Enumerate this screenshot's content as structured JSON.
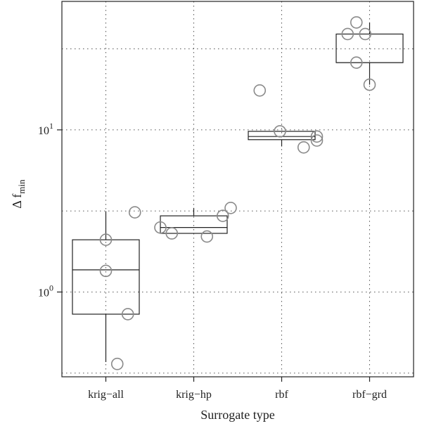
{
  "chart_data": {
    "type": "box",
    "xlabel": "Surrogate type",
    "ylabel_main": "Δ f",
    "ylabel_sub": "min",
    "yscale": "log",
    "ylim": [
      0.3,
      62
    ],
    "yticks": [
      {
        "value": 1,
        "base": "10",
        "exp": "0"
      },
      {
        "value": 10,
        "base": "10",
        "exp": "1"
      }
    ],
    "grid": true,
    "categories": [
      "krig−all",
      "krig−hp",
      "rbf",
      "rbf−grd"
    ],
    "boxes": [
      {
        "whisker_low": 0.37,
        "q1": 0.73,
        "median": 1.37,
        "q3": 2.1,
        "whisker_high": 3.15
      },
      {
        "whisker_low": 2.3,
        "q1": 2.3,
        "median": 2.5,
        "q3": 2.95,
        "whisker_high": 3.3
      },
      {
        "whisker_low": 7.9,
        "q1": 8.7,
        "median": 9.1,
        "q3": 9.8,
        "whisker_high": 9.8
      },
      {
        "whisker_low": 19,
        "q1": 26,
        "median": 26,
        "q3": 39,
        "whisker_high": 46
      }
    ],
    "points": [
      [
        {
          "offset": 0.0,
          "value": 2.1
        },
        {
          "offset": 0.0,
          "value": 1.35
        },
        {
          "offset": 0.25,
          "value": 0.73
        },
        {
          "offset": 0.33,
          "value": 3.1
        },
        {
          "offset": 0.13,
          "value": 0.36
        }
      ],
      [
        {
          "offset": -0.38,
          "value": 2.5
        },
        {
          "offset": -0.25,
          "value": 2.3
        },
        {
          "offset": 0.15,
          "value": 2.2
        },
        {
          "offset": 0.33,
          "value": 2.95
        },
        {
          "offset": 0.42,
          "value": 3.3
        }
      ],
      [
        {
          "offset": -0.25,
          "value": 17.5
        },
        {
          "offset": -0.02,
          "value": 9.8
        },
        {
          "offset": 0.25,
          "value": 7.8
        },
        {
          "offset": 0.4,
          "value": 9.1
        },
        {
          "offset": 0.4,
          "value": 8.6
        }
      ],
      [
        {
          "offset": -0.15,
          "value": 46
        },
        {
          "offset": -0.25,
          "value": 39
        },
        {
          "offset": -0.05,
          "value": 39
        },
        {
          "offset": -0.15,
          "value": 26
        },
        {
          "offset": 0.0,
          "value": 19
        }
      ]
    ]
  }
}
